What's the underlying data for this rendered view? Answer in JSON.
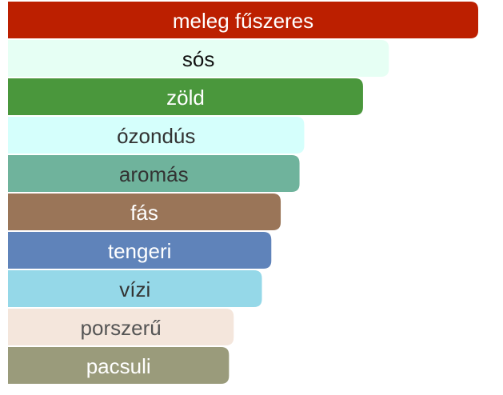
{
  "chart_data": {
    "type": "bar",
    "orientation": "horizontal",
    "categories": [
      "meleg fűszeres",
      "sós",
      "zöld",
      "ózondús",
      "aromás",
      "fás",
      "tengeri",
      "vízi",
      "porszerű",
      "pacsuli"
    ],
    "values": [
      100,
      81,
      75.5,
      63,
      62,
      58,
      56,
      54,
      48,
      47
    ],
    "colors": [
      "#bc1f00",
      "#e6fff4",
      "#4a973c",
      "#d5fffc",
      "#6fb39c",
      "#9a7558",
      "#5f83ba",
      "#95d8e8",
      "#f4e6dc",
      "#9a9b7b"
    ],
    "label_colors": [
      "#ffffff",
      "#111111",
      "#ffffff",
      "#333333",
      "#333333",
      "#ffffff",
      "#ffffff",
      "#333333",
      "#555555",
      "#ffffff"
    ],
    "xlim": [
      0,
      100
    ]
  }
}
